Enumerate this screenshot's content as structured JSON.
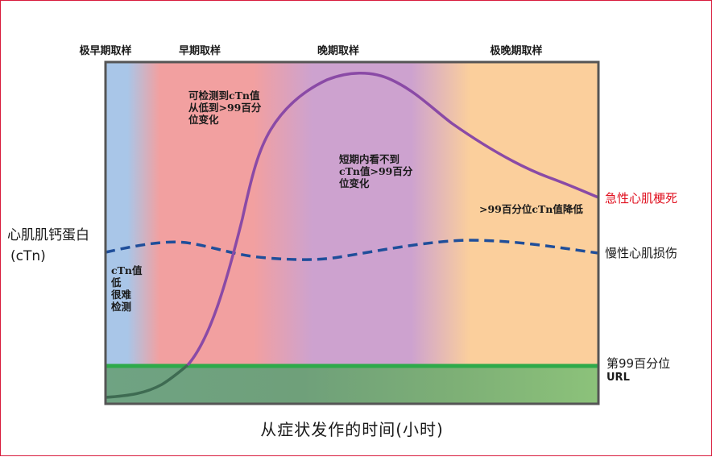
{
  "phases": {
    "very_early": "极早期取样",
    "early": "早期取样",
    "late": "晚期取样",
    "very_late": "极晚期取样"
  },
  "annotations": {
    "early_change": [
      "可检测到cTn值",
      "从低到>99百分",
      "位变化"
    ],
    "late_no_change": [
      "短期内看不到",
      "cTn值>99百分",
      "位变化"
    ],
    "low_values": [
      "cTn值",
      "低",
      "很难",
      "检测"
    ],
    "decline": ">99百分位cTn值降低"
  },
  "y_axis": {
    "label_line1": "心肌肌钙蛋白",
    "label_line2": "(cTn)"
  },
  "curves": {
    "acute_mi": {
      "label": "急性心肌梗死",
      "color": "#8a4aa6"
    },
    "chronic_injury": {
      "label": "慢性心肌损伤",
      "color": "#1f4e9a"
    }
  },
  "threshold": {
    "line1": "第99百分位",
    "line2": "URL",
    "color": "#2eaa4a"
  },
  "x_axis": {
    "label": "从症状发作的时间(小时)"
  },
  "colors": {
    "zone_very_early": "#a9c6e8",
    "zone_early": "#f2a0a0",
    "zone_late": "#cda2cf",
    "zone_very_late": "#fbcf9c",
    "frame_border": "#d81b3c",
    "acute_label": "#e0101f"
  }
}
